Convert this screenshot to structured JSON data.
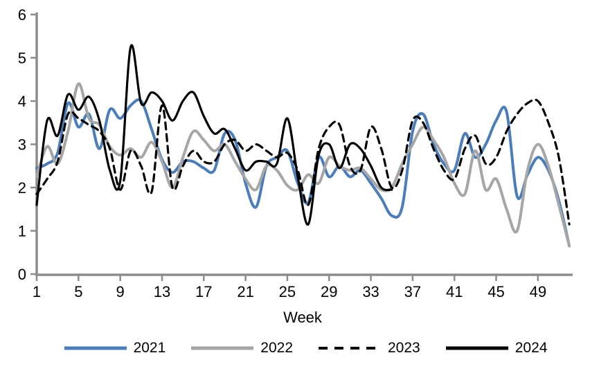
{
  "chart_data": {
    "type": "line",
    "title": "",
    "xlabel": "Week",
    "ylabel": "",
    "xlim": [
      1,
      52
    ],
    "ylim": [
      0,
      6
    ],
    "x_ticks": [
      1,
      5,
      9,
      13,
      17,
      21,
      25,
      29,
      33,
      37,
      41,
      45,
      49
    ],
    "y_ticks": [
      0,
      1,
      2,
      3,
      4,
      5,
      6
    ],
    "grid": false,
    "legend_position": "bottom",
    "axis_color": "#8c8c8c",
    "text_color": "#000000",
    "x": [
      1,
      2,
      3,
      4,
      5,
      6,
      7,
      8,
      9,
      10,
      11,
      12,
      13,
      14,
      15,
      16,
      17,
      18,
      19,
      20,
      21,
      22,
      23,
      24,
      25,
      26,
      27,
      28,
      29,
      30,
      31,
      32,
      33,
      34,
      35,
      36,
      37,
      38,
      39,
      40,
      41,
      42,
      43,
      44,
      45,
      46,
      47,
      48,
      49,
      50,
      51,
      52
    ],
    "series": [
      {
        "name": "2021",
        "color": "#4a7ebb",
        "style": "solid",
        "width": 4,
        "values": [
          2.45,
          2.55,
          2.8,
          3.95,
          3.4,
          3.7,
          2.9,
          3.8,
          3.6,
          3.9,
          4.0,
          3.35,
          2.65,
          2.35,
          2.6,
          2.6,
          2.45,
          2.4,
          3.25,
          3.1,
          2.1,
          1.55,
          2.5,
          2.7,
          2.85,
          2.1,
          1.65,
          2.7,
          2.25,
          2.5,
          2.25,
          2.4,
          2.1,
          1.75,
          1.35,
          1.55,
          3.3,
          3.7,
          3.0,
          2.55,
          2.4,
          3.25,
          2.7,
          3.0,
          3.55,
          3.75,
          1.8,
          2.3,
          2.7,
          2.4,
          1.7,
          0.65
        ]
      },
      {
        "name": "2022",
        "color": "#a6a6a6",
        "style": "solid",
        "width": 4,
        "values": [
          2.25,
          2.95,
          2.55,
          3.3,
          4.4,
          3.6,
          3.45,
          2.95,
          2.75,
          2.9,
          2.7,
          3.05,
          2.6,
          2.0,
          2.7,
          3.3,
          3.1,
          2.85,
          3.0,
          2.6,
          2.2,
          1.95,
          2.5,
          2.4,
          2.05,
          1.95,
          2.3,
          2.1,
          2.7,
          2.5,
          2.4,
          2.45,
          2.2,
          1.95,
          2.0,
          2.55,
          3.0,
          3.4,
          3.1,
          2.7,
          2.1,
          1.85,
          2.85,
          1.95,
          2.2,
          1.5,
          1.0,
          2.4,
          3.0,
          2.5,
          1.6,
          0.65
        ]
      },
      {
        "name": "2023",
        "color": "#000000",
        "style": "dashed",
        "width": 3.2,
        "values": [
          1.85,
          2.2,
          2.6,
          3.7,
          3.6,
          3.45,
          3.3,
          2.9,
          1.95,
          2.85,
          2.5,
          1.9,
          3.9,
          2.0,
          2.5,
          2.85,
          2.6,
          2.6,
          3.0,
          3.1,
          2.85,
          3.0,
          2.85,
          2.7,
          2.8,
          2.4,
          1.6,
          2.9,
          3.4,
          3.45,
          2.5,
          2.4,
          3.4,
          2.9,
          2.0,
          2.4,
          3.55,
          3.5,
          2.9,
          2.4,
          2.2,
          2.9,
          3.2,
          2.55,
          2.7,
          3.3,
          3.7,
          3.95,
          4.0,
          3.5,
          2.7,
          1.15
        ]
      },
      {
        "name": "2024",
        "color": "#000000",
        "style": "solid",
        "width": 3.2,
        "values": [
          1.6,
          3.55,
          3.2,
          4.15,
          3.8,
          4.1,
          3.55,
          2.4,
          2.15,
          5.25,
          3.95,
          4.2,
          4.0,
          3.55,
          4.0,
          4.2,
          3.65,
          3.25,
          3.35,
          2.9,
          2.4,
          2.6,
          2.6,
          2.55,
          3.6,
          2.25,
          1.15,
          2.75,
          3.0,
          2.45,
          3.0,
          2.9,
          2.5,
          2.0,
          1.95
        ]
      }
    ]
  },
  "legend": {
    "items": [
      {
        "label": "2021",
        "color": "#4a7ebb",
        "style": "solid"
      },
      {
        "label": "2022",
        "color": "#a6a6a6",
        "style": "solid"
      },
      {
        "label": "2023",
        "color": "#000000",
        "style": "dashed"
      },
      {
        "label": "2024",
        "color": "#000000",
        "style": "solid"
      }
    ]
  }
}
